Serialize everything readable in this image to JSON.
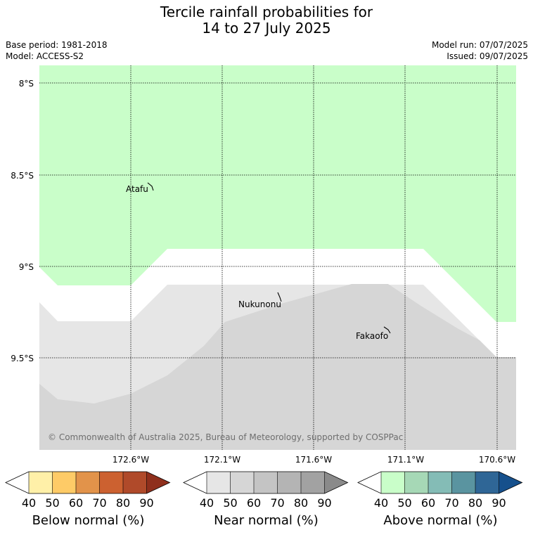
{
  "title_line1": "Tercile rainfall probabilities for",
  "title_line2": "14 to 27 July 2025",
  "base_period": "Base period: 1981-2018",
  "model": "Model: ACCESS-S2",
  "model_run": "Model run: 07/07/2025",
  "issued": "Issued: 09/07/2025",
  "copyright": "© Commonwealth of Australia 2025, Bureau of Meteorology, supported by COSPPac",
  "lat_labels": [
    "8°S",
    "8.5°S",
    "9°S",
    "9.5°S"
  ],
  "lon_labels": [
    "172.6°W",
    "172.1°W",
    "171.6°W",
    "171.1°W",
    "170.6°W"
  ],
  "places": [
    {
      "name": "Atafu"
    },
    {
      "name": "Nukunonu"
    },
    {
      "name": "Fakaofo"
    }
  ],
  "colorbars": [
    {
      "label": "Below normal (%)",
      "ticks": [
        "40",
        "50",
        "60",
        "70",
        "80",
        "90"
      ],
      "colors": [
        "#ffffff",
        "#fff0a8",
        "#fecb67",
        "#e2934a",
        "#cc6130",
        "#b04a2a",
        "#8f2f1c"
      ]
    },
    {
      "label": "Near normal (%)",
      "ticks": [
        "40",
        "50",
        "60",
        "70",
        "80",
        "90"
      ],
      "colors": [
        "#ffffff",
        "#e6e6e6",
        "#d6d6d6",
        "#c4c4c4",
        "#b4b4b4",
        "#a2a2a2",
        "#8a8a8a"
      ]
    },
    {
      "label": "Above normal (%)",
      "ticks": [
        "40",
        "50",
        "60",
        "70",
        "80",
        "90"
      ],
      "colors": [
        "#ffffff",
        "#c9fec9",
        "#a6d8b6",
        "#84bcb6",
        "#5a94a0",
        "#2f6696",
        "#16508c"
      ]
    }
  ]
}
